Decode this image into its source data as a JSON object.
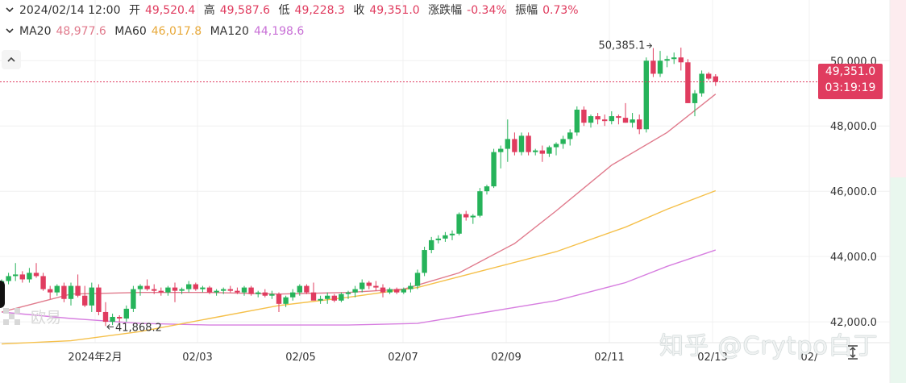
{
  "header": {
    "datetime": "2024/02/14 12:00",
    "open_label": "开",
    "open": "49,520.4",
    "high_label": "高",
    "high": "49,587.6",
    "low_label": "低",
    "low": "49,228.3",
    "close_label": "收",
    "close": "49,351.0",
    "change_label": "涨跌幅",
    "change": "-0.34%",
    "amplitude_label": "振幅",
    "amplitude": "0.73%"
  },
  "ma_row": {
    "ma20_label": "MA20",
    "ma20": "48,977.6",
    "ma60_label": "MA60",
    "ma60": "46,017.8",
    "ma120_label": "MA120",
    "ma120": "44,198.6"
  },
  "price_tag": {
    "price": "49,351.0",
    "countdown": "03:19:19"
  },
  "watermark": {
    "text": "知乎 @Crytpo白丁",
    "logo_text": "欧易"
  },
  "colors": {
    "up": "#26b35a",
    "down": "#e03c5f",
    "ma20": "#e07a8c",
    "ma60": "#f5c04a",
    "ma120": "#d77fe0",
    "grid": "#f0f0f0"
  },
  "icons": {
    "collapse": "chevron-up-icon",
    "expand": "chevron-down-icon",
    "resize": "resize-vertical-icon"
  },
  "chart_data": {
    "type": "candlestick",
    "x_tick_labels": [
      "2024年2月",
      "02/03",
      "02/05",
      "02/07",
      "02/09",
      "02/11",
      "02/13",
      "02/"
    ],
    "y_tick_labels": [
      "50,000.0",
      "48,000.0",
      "46,000.0",
      "44,000.0",
      "42,000.0"
    ],
    "y_ticks": [
      50000,
      48000,
      46000,
      44000,
      42000
    ],
    "ylim": [
      41360,
      51860
    ],
    "annotations": [
      {
        "label": "50,385.1",
        "value": 50385.1,
        "kind": "high"
      },
      {
        "label": "41,868.2",
        "value": 41868.2,
        "kind": "low"
      }
    ],
    "last_price": 49351.0,
    "candles": [
      [
        43100,
        43300,
        42950,
        43250
      ],
      [
        43250,
        43500,
        43150,
        43400
      ],
      [
        43400,
        43800,
        43250,
        43450
      ],
      [
        43450,
        43550,
        43200,
        43300
      ],
      [
        43300,
        43650,
        43200,
        43500
      ],
      [
        43500,
        43800,
        43350,
        43400
      ],
      [
        43400,
        43500,
        42950,
        43000
      ],
      [
        43000,
        43100,
        42700,
        42900
      ],
      [
        42900,
        43150,
        42800,
        43100
      ],
      [
        43100,
        43200,
        42600,
        42700
      ],
      [
        42700,
        43200,
        42500,
        43100
      ],
      [
        43100,
        43450,
        42750,
        42800
      ],
      [
        42800,
        43100,
        42450,
        42500
      ],
      [
        42500,
        43200,
        42300,
        43050
      ],
      [
        43050,
        43150,
        42200,
        42300
      ],
      [
        42300,
        42600,
        41868.2,
        42000
      ],
      [
        42000,
        42250,
        41900,
        42150
      ],
      [
        42150,
        42200,
        42000,
        42100
      ],
      [
        42100,
        42500,
        42000,
        42400
      ],
      [
        42400,
        43100,
        42300,
        43000
      ],
      [
        43000,
        43150,
        42800,
        43100
      ],
      [
        43100,
        43300,
        42950,
        43000
      ],
      [
        43000,
        43150,
        42850,
        42950
      ],
      [
        42950,
        43050,
        42800,
        42900
      ],
      [
        42900,
        43100,
        42800,
        43050
      ],
      [
        43050,
        43200,
        42600,
        42950
      ],
      [
        42950,
        43050,
        42850,
        43000
      ],
      [
        43000,
        43250,
        42900,
        43150
      ],
      [
        43150,
        43200,
        42950,
        43000
      ],
      [
        43000,
        43100,
        42900,
        43050
      ],
      [
        43050,
        43100,
        42850,
        42900
      ],
      [
        42900,
        43000,
        42800,
        42950
      ],
      [
        42950,
        43050,
        42850,
        43000
      ],
      [
        43000,
        43100,
        42900,
        42950
      ],
      [
        42950,
        43050,
        42850,
        42900
      ],
      [
        42900,
        43100,
        42800,
        43050
      ],
      [
        43050,
        43100,
        42800,
        42850
      ],
      [
        42850,
        42950,
        42750,
        42900
      ],
      [
        42900,
        43000,
        42750,
        42800
      ],
      [
        42800,
        42950,
        42700,
        42850
      ],
      [
        42850,
        42900,
        42300,
        42550
      ],
      [
        42550,
        42800,
        42450,
        42750
      ],
      [
        42750,
        43000,
        42650,
        42900
      ],
      [
        42900,
        43150,
        42800,
        43100
      ],
      [
        43100,
        43150,
        42850,
        42900
      ],
      [
        42900,
        43200,
        42700,
        42650
      ],
      [
        42650,
        42800,
        42550,
        42700
      ],
      [
        42700,
        42900,
        42550,
        42800
      ],
      [
        42800,
        42850,
        42600,
        42650
      ],
      [
        42650,
        42900,
        42600,
        42850
      ],
      [
        42850,
        42950,
        42700,
        42900
      ],
      [
        42900,
        43100,
        42750,
        43000
      ],
      [
        43000,
        43300,
        42900,
        43200
      ],
      [
        43200,
        43250,
        43000,
        43100
      ],
      [
        43100,
        43250,
        42950,
        43050
      ],
      [
        43050,
        43150,
        42750,
        42900
      ],
      [
        42900,
        43050,
        42850,
        43000
      ],
      [
        43000,
        43050,
        42850,
        42900
      ],
      [
        42900,
        43050,
        42850,
        43000
      ],
      [
        43000,
        43200,
        42900,
        43100
      ],
      [
        43100,
        43600,
        43000,
        43500
      ],
      [
        43500,
        44300,
        43400,
        44200
      ],
      [
        44200,
        44600,
        44100,
        44500
      ],
      [
        44500,
        44650,
        44400,
        44550
      ],
      [
        44550,
        44750,
        44450,
        44650
      ],
      [
        44650,
        44800,
        44500,
        44700
      ],
      [
        44700,
        45350,
        44650,
        45300
      ],
      [
        45300,
        45400,
        45100,
        45200
      ],
      [
        45200,
        45300,
        45000,
        45250
      ],
      [
        45250,
        46100,
        45200,
        46000
      ],
      [
        46000,
        46200,
        45900,
        46150
      ],
      [
        46150,
        47300,
        46100,
        47200
      ],
      [
        47200,
        47400,
        46700,
        47300
      ],
      [
        47300,
        48200,
        46900,
        47600
      ],
      [
        47600,
        47800,
        47100,
        47200
      ],
      [
        47200,
        47800,
        47100,
        47700
      ],
      [
        47700,
        47800,
        47100,
        47200
      ],
      [
        47200,
        47300,
        47100,
        47250
      ],
      [
        47250,
        47400,
        46900,
        47150
      ],
      [
        47150,
        47400,
        47050,
        47350
      ],
      [
        47350,
        47500,
        47100,
        47450
      ],
      [
        47450,
        47700,
        47300,
        47600
      ],
      [
        47600,
        47900,
        47400,
        47800
      ],
      [
        47800,
        48600,
        47700,
        48500
      ],
      [
        48500,
        48600,
        48000,
        48100
      ],
      [
        48100,
        48350,
        47950,
        48300
      ],
      [
        48300,
        48400,
        48050,
        48200
      ],
      [
        48200,
        48350,
        48000,
        48150
      ],
      [
        48150,
        48450,
        48050,
        48300
      ],
      [
        48300,
        48350,
        48050,
        48250
      ],
      [
        48250,
        48700,
        48100,
        48100
      ],
      [
        48100,
        48400,
        47950,
        48200
      ],
      [
        48200,
        48350,
        47750,
        47900
      ],
      [
        47900,
        50100,
        47800,
        50000
      ],
      [
        50000,
        50385.1,
        49500,
        49600
      ],
      [
        49600,
        50300,
        49500,
        50000
      ],
      [
        50000,
        50150,
        49800,
        50050
      ],
      [
        50050,
        50250,
        49900,
        50100
      ],
      [
        50100,
        50400,
        49700,
        49950
      ],
      [
        49950,
        50050,
        48700,
        48700
      ],
      [
        48700,
        49100,
        48300,
        49000
      ],
      [
        49000,
        49700,
        48900,
        49600
      ],
      [
        49600,
        49650,
        49400,
        49450
      ],
      [
        49520.4,
        49587.6,
        49228.3,
        49351.0
      ]
    ],
    "ma20": [
      [
        0,
        42300
      ],
      [
        10,
        42850
      ],
      [
        20,
        42900
      ],
      [
        30,
        42900
      ],
      [
        40,
        42850
      ],
      [
        50,
        42900
      ],
      [
        58,
        43000
      ],
      [
        66,
        43500
      ],
      [
        74,
        44400
      ],
      [
        80,
        45400
      ],
      [
        88,
        46800
      ],
      [
        96,
        47800
      ],
      [
        103,
        48977.6
      ]
    ],
    "ma60": [
      [
        0,
        41320
      ],
      [
        10,
        41420
      ],
      [
        20,
        41700
      ],
      [
        30,
        42100
      ],
      [
        40,
        42500
      ],
      [
        50,
        42750
      ],
      [
        60,
        43050
      ],
      [
        70,
        43600
      ],
      [
        80,
        44150
      ],
      [
        90,
        44900
      ],
      [
        96,
        45450
      ],
      [
        103,
        46017.8
      ]
    ],
    "ma120": [
      [
        0,
        42300
      ],
      [
        10,
        42100
      ],
      [
        20,
        41950
      ],
      [
        30,
        41900
      ],
      [
        40,
        41900
      ],
      [
        50,
        41900
      ],
      [
        60,
        41950
      ],
      [
        70,
        42300
      ],
      [
        80,
        42650
      ],
      [
        90,
        43200
      ],
      [
        96,
        43700
      ],
      [
        103,
        44198.6
      ]
    ]
  }
}
